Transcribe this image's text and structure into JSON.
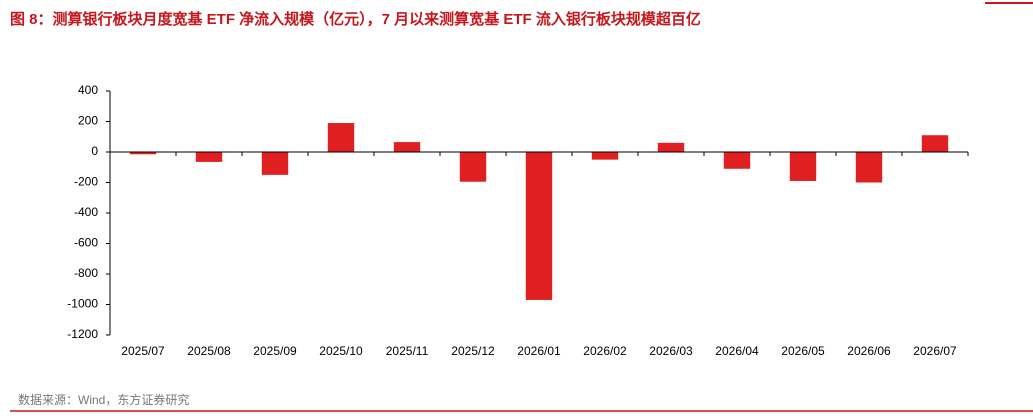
{
  "chart_data": {
    "type": "bar",
    "title": "图 8：测算银行板块月度宽基 ETF 净流入规模（亿元），7 月以来测算宽基 ETF 流入银行板块规模超百亿",
    "source": "数据来源：Wind，东方证券研究",
    "categories": [
      "2025/07",
      "2025/08",
      "2025/09",
      "2025/10",
      "2025/11",
      "2025/12",
      "2026/01",
      "2026/02",
      "2026/03",
      "2026/04",
      "2026/05",
      "2026/06",
      "2026/07"
    ],
    "values": [
      -15,
      -65,
      -150,
      190,
      65,
      -195,
      -970,
      -50,
      60,
      -110,
      -190,
      -200,
      110
    ],
    "color": "#e02020",
    "ylim": [
      -1200,
      400
    ],
    "yticks": [
      -1200,
      -1000,
      -800,
      -600,
      -400,
      -200,
      0,
      200,
      400
    ],
    "grid": false
  }
}
